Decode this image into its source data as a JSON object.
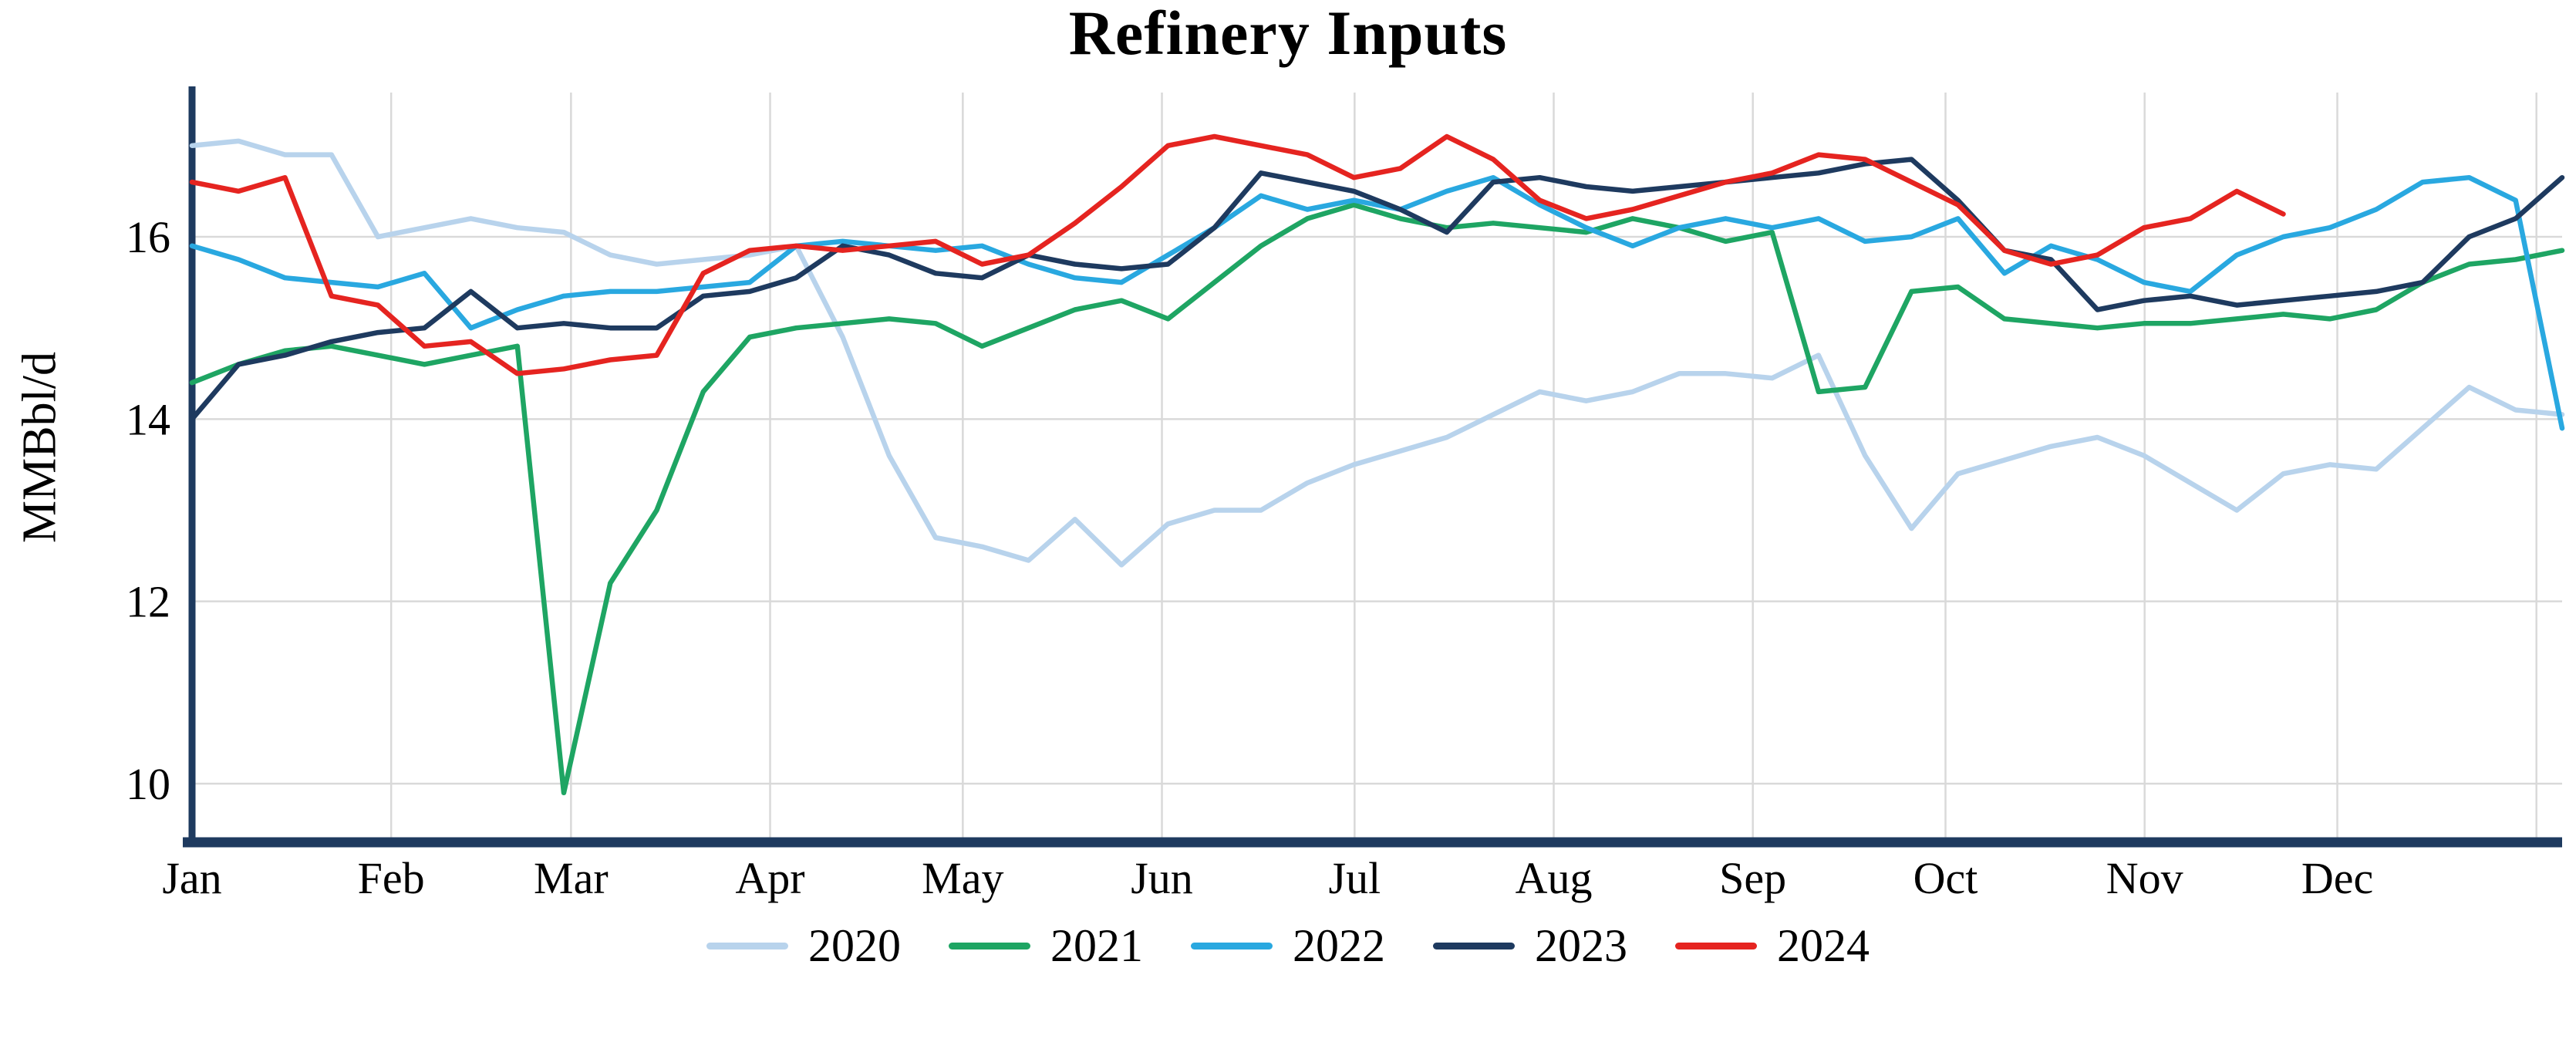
{
  "chart_data": {
    "type": "line",
    "title": "Refinery Inputs",
    "ylabel": "MMBbl/d",
    "xlabel": "",
    "y_ticks": [
      10,
      12,
      14,
      16
    ],
    "ylim": [
      9.37,
      17.57
    ],
    "x_tick_labels": [
      "Jan",
      "Feb",
      "Mar",
      "Apr",
      "May",
      "Jun",
      "Jul",
      "Aug",
      "Sep",
      "Oct",
      "Nov",
      "Dec"
    ],
    "x_unit": "weekly observations spanning Jan-Dec",
    "grid": true,
    "legend_position": "bottom",
    "axis_color": "#1e3a5f",
    "grid_color": "#d9d9d9",
    "series": [
      {
        "name": "2020",
        "color": "#b8d3ec",
        "values": [
          17.0,
          17.05,
          16.9,
          16.9,
          16.0,
          16.1,
          16.2,
          16.1,
          16.05,
          15.8,
          15.7,
          15.75,
          15.8,
          15.9,
          14.9,
          13.6,
          12.7,
          12.6,
          12.45,
          12.9,
          12.4,
          12.85,
          13.0,
          13.0,
          13.3,
          13.5,
          13.65,
          13.8,
          14.05,
          14.3,
          14.2,
          14.3,
          14.5,
          14.5,
          14.45,
          14.7,
          13.6,
          12.8,
          13.4,
          13.55,
          13.7,
          13.8,
          13.6,
          13.3,
          13.0,
          13.4,
          13.5,
          13.45,
          13.9,
          14.35,
          14.1,
          14.05
        ]
      },
      {
        "name": "2021",
        "color": "#1ea563",
        "values": [
          14.4,
          14.6,
          14.75,
          14.8,
          14.7,
          14.6,
          14.7,
          14.8,
          9.9,
          12.2,
          13.0,
          14.3,
          14.9,
          15.0,
          15.05,
          15.1,
          15.05,
          14.8,
          15.0,
          15.2,
          15.3,
          15.1,
          15.5,
          15.9,
          16.2,
          16.35,
          16.2,
          16.1,
          16.15,
          16.1,
          16.05,
          16.2,
          16.1,
          15.95,
          16.05,
          14.3,
          14.35,
          15.4,
          15.45,
          15.1,
          15.05,
          15.0,
          15.05,
          15.05,
          15.1,
          15.15,
          15.1,
          15.2,
          15.5,
          15.7,
          15.75,
          15.85
        ]
      },
      {
        "name": "2022",
        "color": "#29a8e0",
        "values": [
          15.9,
          15.75,
          15.55,
          15.5,
          15.45,
          15.6,
          15.0,
          15.2,
          15.35,
          15.4,
          15.4,
          15.45,
          15.5,
          15.9,
          15.95,
          15.9,
          15.85,
          15.9,
          15.7,
          15.55,
          15.5,
          15.8,
          16.1,
          16.45,
          16.3,
          16.4,
          16.3,
          16.5,
          16.65,
          16.35,
          16.1,
          15.9,
          16.1,
          16.2,
          16.1,
          16.2,
          15.95,
          16.0,
          16.2,
          15.6,
          15.9,
          15.75,
          15.5,
          15.4,
          15.8,
          16.0,
          16.1,
          16.3,
          16.6,
          16.65,
          16.4,
          13.9
        ]
      },
      {
        "name": "2023",
        "color": "#1e3a5f",
        "values": [
          14.0,
          14.6,
          14.7,
          14.85,
          14.95,
          15.0,
          15.4,
          15.0,
          15.05,
          15.0,
          15.0,
          15.35,
          15.4,
          15.55,
          15.9,
          15.8,
          15.6,
          15.55,
          15.8,
          15.7,
          15.65,
          15.7,
          16.1,
          16.7,
          16.6,
          16.5,
          16.3,
          16.05,
          16.6,
          16.65,
          16.55,
          16.5,
          16.55,
          16.6,
          16.65,
          16.7,
          16.8,
          16.85,
          16.4,
          15.85,
          15.75,
          15.2,
          15.3,
          15.35,
          15.25,
          15.3,
          15.35,
          15.4,
          15.5,
          16.0,
          16.2,
          16.65
        ]
      },
      {
        "name": "2024",
        "color": "#e52420",
        "values": [
          16.6,
          16.5,
          16.65,
          15.35,
          15.25,
          14.8,
          14.85,
          14.5,
          14.55,
          14.65,
          14.7,
          15.6,
          15.85,
          15.9,
          15.85,
          15.9,
          15.95,
          15.7,
          15.8,
          16.15,
          16.55,
          17.0,
          17.1,
          17.0,
          16.9,
          16.65,
          16.75,
          17.1,
          16.85,
          16.4,
          16.2,
          16.3,
          16.45,
          16.6,
          16.7,
          16.9,
          16.85,
          16.6,
          16.35,
          15.85,
          15.7,
          15.8,
          16.1,
          16.2,
          16.5,
          16.25
        ]
      }
    ]
  }
}
